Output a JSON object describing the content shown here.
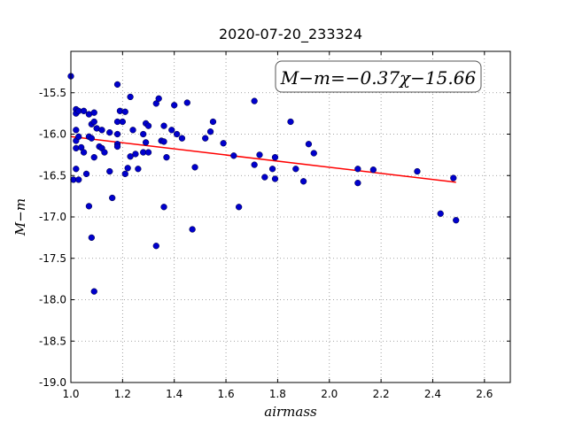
{
  "chart_data": {
    "type": "scatter",
    "title": "2020-07-20_233324",
    "xlabel": "airmass",
    "ylabel": "M−m",
    "xlim": [
      1.0,
      2.7
    ],
    "ylim": [
      -19.0,
      -15.0
    ],
    "y_inverted": true,
    "grid": true,
    "x_ticks": [
      "1.0",
      "1.2",
      "1.4",
      "1.6",
      "1.8",
      "2.0",
      "2.2",
      "2.4",
      "2.6"
    ],
    "y_ticks": [
      "-15.5",
      "-16.0",
      "-16.5",
      "-17.0",
      "-17.5",
      "-18.0",
      "-18.5",
      "-19.0"
    ],
    "annotation": "M−m=−0.37χ−15.66",
    "colors": {
      "points": "#0000cc",
      "fit": "#ff0000",
      "grid": "#888888"
    },
    "fit_line": {
      "slope": -0.37,
      "intercept": -15.66,
      "x_range": [
        1.0,
        2.49
      ]
    },
    "points": [
      [
        1.0,
        -15.3
      ],
      [
        1.01,
        -16.55
      ],
      [
        1.02,
        -15.7
      ],
      [
        1.02,
        -15.75
      ],
      [
        1.03,
        -15.72
      ],
      [
        1.02,
        -15.95
      ],
      [
        1.02,
        -16.08
      ],
      [
        1.03,
        -16.03
      ],
      [
        1.02,
        -16.17
      ],
      [
        1.04,
        -16.16
      ],
      [
        1.02,
        -16.42
      ],
      [
        1.03,
        -16.55
      ],
      [
        1.05,
        -16.22
      ],
      [
        1.06,
        -16.48
      ],
      [
        1.05,
        -15.72
      ],
      [
        1.07,
        -15.76
      ],
      [
        1.09,
        -15.74
      ],
      [
        1.08,
        -15.88
      ],
      [
        1.09,
        -15.85
      ],
      [
        1.1,
        -15.93
      ],
      [
        1.07,
        -16.03
      ],
      [
        1.08,
        -16.05
      ],
      [
        1.12,
        -15.95
      ],
      [
        1.11,
        -16.15
      ],
      [
        1.12,
        -16.17
      ],
      [
        1.13,
        -16.22
      ],
      [
        1.09,
        -16.28
      ],
      [
        1.15,
        -15.98
      ],
      [
        1.15,
        -16.45
      ],
      [
        1.16,
        -16.77
      ],
      [
        1.07,
        -16.87
      ],
      [
        1.08,
        -17.25
      ],
      [
        1.09,
        -17.9
      ],
      [
        1.18,
        -15.4
      ],
      [
        1.19,
        -15.72
      ],
      [
        1.21,
        -15.73
      ],
      [
        1.18,
        -15.85
      ],
      [
        1.2,
        -15.85
      ],
      [
        1.18,
        -16.0
      ],
      [
        1.18,
        -16.12
      ],
      [
        1.18,
        -16.15
      ],
      [
        1.21,
        -16.48
      ],
      [
        1.23,
        -15.55
      ],
      [
        1.24,
        -15.95
      ],
      [
        1.23,
        -16.27
      ],
      [
        1.25,
        -16.24
      ],
      [
        1.22,
        -16.41
      ],
      [
        1.26,
        -16.42
      ],
      [
        1.28,
        -16.0
      ],
      [
        1.29,
        -15.87
      ],
      [
        1.3,
        -15.9
      ],
      [
        1.28,
        -16.22
      ],
      [
        1.3,
        -16.22
      ],
      [
        1.29,
        -16.1
      ],
      [
        1.33,
        -15.63
      ],
      [
        1.34,
        -15.57
      ],
      [
        1.36,
        -15.9
      ],
      [
        1.35,
        -16.08
      ],
      [
        1.36,
        -16.09
      ],
      [
        1.37,
        -16.28
      ],
      [
        1.36,
        -16.88
      ],
      [
        1.33,
        -17.35
      ],
      [
        1.4,
        -15.65
      ],
      [
        1.39,
        -15.95
      ],
      [
        1.41,
        -16.0
      ],
      [
        1.43,
        -16.05
      ],
      [
        1.45,
        -15.62
      ],
      [
        1.48,
        -16.4
      ],
      [
        1.47,
        -17.15
      ],
      [
        1.52,
        -16.05
      ],
      [
        1.54,
        -15.97
      ],
      [
        1.55,
        -15.85
      ],
      [
        1.59,
        -16.11
      ],
      [
        1.63,
        -16.26
      ],
      [
        1.65,
        -16.88
      ],
      [
        1.71,
        -15.6
      ],
      [
        1.71,
        -16.37
      ],
      [
        1.73,
        -16.25
      ],
      [
        1.75,
        -16.52
      ],
      [
        1.78,
        -16.42
      ],
      [
        1.79,
        -16.28
      ],
      [
        1.79,
        -16.54
      ],
      [
        1.85,
        -15.85
      ],
      [
        1.87,
        -16.42
      ],
      [
        1.9,
        -16.57
      ],
      [
        1.92,
        -16.12
      ],
      [
        1.94,
        -16.23
      ],
      [
        2.11,
        -16.42
      ],
      [
        2.11,
        -16.59
      ],
      [
        2.17,
        -16.43
      ],
      [
        2.34,
        -16.45
      ],
      [
        2.43,
        -16.96
      ],
      [
        2.48,
        -16.53
      ],
      [
        2.49,
        -17.04
      ]
    ]
  }
}
